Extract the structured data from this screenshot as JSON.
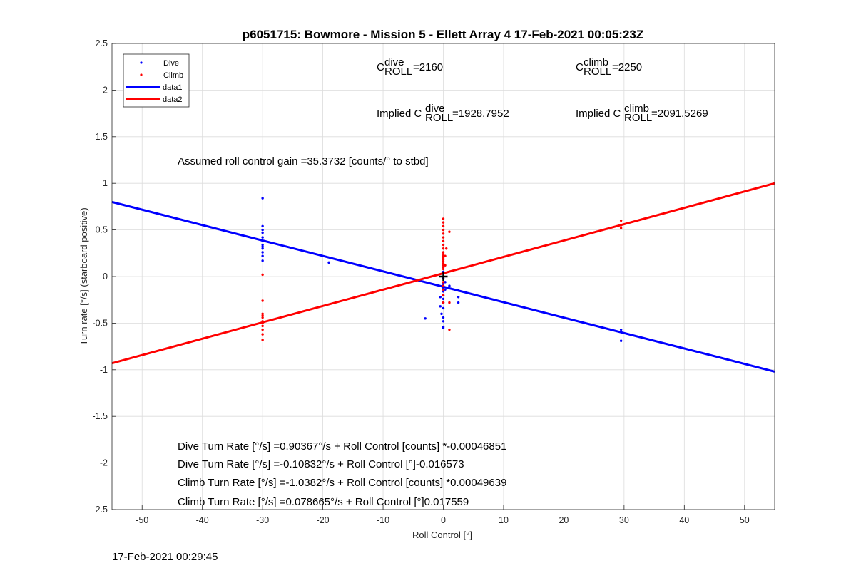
{
  "chart_data": {
    "type": "scatter",
    "title": "p6051715: Bowmore - Mission 5 - Ellett Array 4 17-Feb-2021 00:05:23Z",
    "xlabel": "Roll Control [°]",
    "ylabel": "Turn rate [°/s] (starboard positive)",
    "xlim": [
      -55,
      55
    ],
    "ylim": [
      -2.5,
      2.5
    ],
    "xticks": [
      -50,
      -40,
      -30,
      -20,
      -10,
      0,
      10,
      20,
      30,
      40,
      50
    ],
    "yticks": [
      -2.5,
      -2,
      -1.5,
      -1,
      -0.5,
      0,
      0.5,
      1,
      1.5,
      2,
      2.5
    ],
    "grid": true,
    "legend_position": "top-left",
    "series": [
      {
        "name": "Dive",
        "kind": "points",
        "color": "#0000ff",
        "points": [
          [
            -30,
            0.84
          ],
          [
            -30,
            0.54
          ],
          [
            -30,
            0.5
          ],
          [
            -30,
            0.47
          ],
          [
            -30,
            0.42
          ],
          [
            -30,
            0.38
          ],
          [
            -30,
            0.34
          ],
          [
            -30,
            0.32
          ],
          [
            -30,
            0.3
          ],
          [
            -30,
            0.26
          ],
          [
            -30,
            0.22
          ],
          [
            -30,
            0.17
          ],
          [
            -19,
            0.15
          ],
          [
            -3,
            -0.45
          ],
          [
            -0.5,
            -0.22
          ],
          [
            -0.5,
            -0.32
          ],
          [
            -0.3,
            -0.4
          ],
          [
            0,
            0.1
          ],
          [
            0,
            0.05
          ],
          [
            0,
            -0.02
          ],
          [
            0,
            -0.08
          ],
          [
            0,
            -0.12
          ],
          [
            0,
            -0.16
          ],
          [
            0,
            -0.2
          ],
          [
            0,
            -0.24
          ],
          [
            0,
            -0.28
          ],
          [
            0,
            -0.34
          ],
          [
            0,
            -0.44
          ],
          [
            0,
            -0.48
          ],
          [
            0,
            -0.54
          ],
          [
            0,
            -0.55
          ],
          [
            0.3,
            -0.06
          ],
          [
            0.3,
            -0.14
          ],
          [
            1,
            -0.1
          ],
          [
            2.5,
            -0.15
          ],
          [
            2.5,
            -0.22
          ],
          [
            2.5,
            -0.28
          ],
          [
            29.5,
            -0.57
          ],
          [
            29.5,
            -0.69
          ]
        ]
      },
      {
        "name": "Climb",
        "kind": "points",
        "color": "#ff0000",
        "points": [
          [
            -30,
            0.02
          ],
          [
            -30,
            -0.26
          ],
          [
            -30,
            -0.4
          ],
          [
            -30,
            -0.42
          ],
          [
            -30,
            -0.44
          ],
          [
            -30,
            -0.48
          ],
          [
            -30,
            -0.5
          ],
          [
            -30,
            -0.53
          ],
          [
            -30,
            -0.57
          ],
          [
            -30,
            -0.62
          ],
          [
            -30,
            -0.68
          ],
          [
            0,
            0.62
          ],
          [
            0,
            0.58
          ],
          [
            0,
            0.54
          ],
          [
            0,
            0.5
          ],
          [
            0,
            0.46
          ],
          [
            0,
            0.42
          ],
          [
            0,
            0.38
          ],
          [
            0,
            0.34
          ],
          [
            0,
            0.3
          ],
          [
            0,
            0.26
          ],
          [
            0,
            0.24
          ],
          [
            0,
            0.22
          ],
          [
            0,
            0.2
          ],
          [
            0,
            0.18
          ],
          [
            0,
            0.16
          ],
          [
            0,
            0.14
          ],
          [
            0,
            0.12
          ],
          [
            0,
            0.1
          ],
          [
            0,
            0.08
          ],
          [
            0,
            0.04
          ],
          [
            0,
            -0.06
          ],
          [
            0,
            -0.1
          ],
          [
            0,
            -0.14
          ],
          [
            0,
            -0.2
          ],
          [
            0,
            -0.28
          ],
          [
            0.3,
            0.22
          ],
          [
            0.3,
            0.12
          ],
          [
            0.5,
            0.3
          ],
          [
            1,
            0.48
          ],
          [
            1,
            -0.28
          ],
          [
            1,
            -0.57
          ],
          [
            29.5,
            0.6
          ],
          [
            29.5,
            0.55
          ],
          [
            29.5,
            0.52
          ]
        ]
      },
      {
        "name": "data1",
        "kind": "line",
        "color": "#0000ff",
        "x": [
          -55,
          55
        ],
        "y": [
          0.8,
          -1.02
        ]
      },
      {
        "name": "data2",
        "kind": "line",
        "color": "#ff0000",
        "x": [
          -55,
          55
        ],
        "y": [
          -0.93,
          1.0
        ]
      }
    ],
    "black_cross_marker": [
      0,
      0
    ]
  },
  "annotations": {
    "c_dive_base": "C",
    "c_dive_sup": "dive",
    "c_dive_sub": "ROLL",
    "c_dive_value": "=2160",
    "c_climb_base": "C",
    "c_climb_sup": "climb",
    "c_climb_sub": "ROLL",
    "c_climb_value": "=2250",
    "implied_dive_prefix": "Implied C",
    "implied_dive_sup": "dive",
    "implied_dive_sub": "ROLL",
    "implied_dive_value": "=1928.7952",
    "implied_climb_prefix": "Implied C",
    "implied_climb_sup": "climb",
    "implied_climb_sub": "ROLL",
    "implied_climb_value": "=2091.5269",
    "gain": "Assumed roll control gain =35.3732 [counts/° to stbd]",
    "eq1": "Dive Turn Rate [°/s] =0.90367°/s + Roll Control [counts] *-0.00046851",
    "eq2": "Dive Turn Rate [°/s] =-0.10832°/s + Roll Control [°]-0.016573",
    "eq3": "Climb Turn Rate [°/s] =-1.0382°/s + Roll Control [counts] *0.00049639",
    "eq4": "Climb Turn Rate [°/s] =0.078665°/s + Roll Control [°]0.017559"
  },
  "timestamp": "17-Feb-2021 00:29:45"
}
